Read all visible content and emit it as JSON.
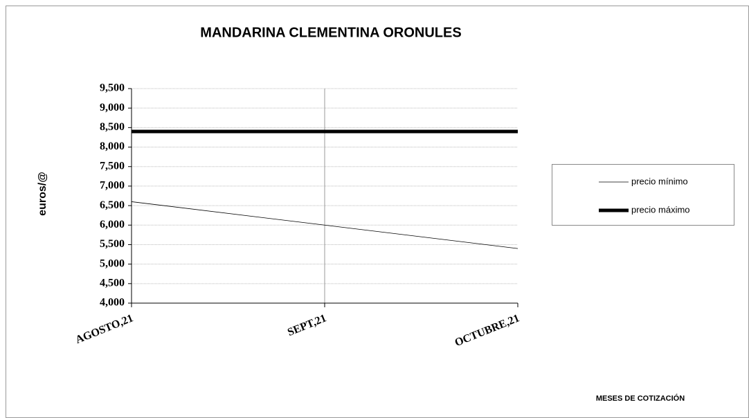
{
  "chart_data": {
    "type": "line",
    "title": "MANDARINA CLEMENTINA ORONULES",
    "y_label": "euros/@",
    "x_label": "MESES DE COTIZACIÓN",
    "categories": [
      "AGOSTO,21",
      "SEPT,21",
      "OCTUBRE,21"
    ],
    "series": [
      {
        "name": "precio mínimo",
        "color": "#000000",
        "values": [
          6.6,
          6.0,
          5.4
        ]
      },
      {
        "name": "precio máximo",
        "color": "#000000",
        "values": [
          8.4,
          8.4,
          8.4
        ]
      }
    ],
    "ylim": [
      4.0,
      9.5
    ],
    "yticks": [
      {
        "value": 4.0,
        "label": "4,000"
      },
      {
        "value": 4.5,
        "label": "4,500"
      },
      {
        "value": 5.0,
        "label": "5,000"
      },
      {
        "value": 5.5,
        "label": "5,500"
      },
      {
        "value": 6.0,
        "label": "6,000"
      },
      {
        "value": 6.5,
        "label": "6,500"
      },
      {
        "value": 7.0,
        "label": "7,000"
      },
      {
        "value": 7.5,
        "label": "7,500"
      },
      {
        "value": 8.0,
        "label": "8,000"
      },
      {
        "value": 8.5,
        "label": "8,500"
      },
      {
        "value": 9.0,
        "label": "9,000"
      },
      {
        "value": 9.5,
        "label": "9,500"
      }
    ],
    "grid": true,
    "legend": "right"
  }
}
